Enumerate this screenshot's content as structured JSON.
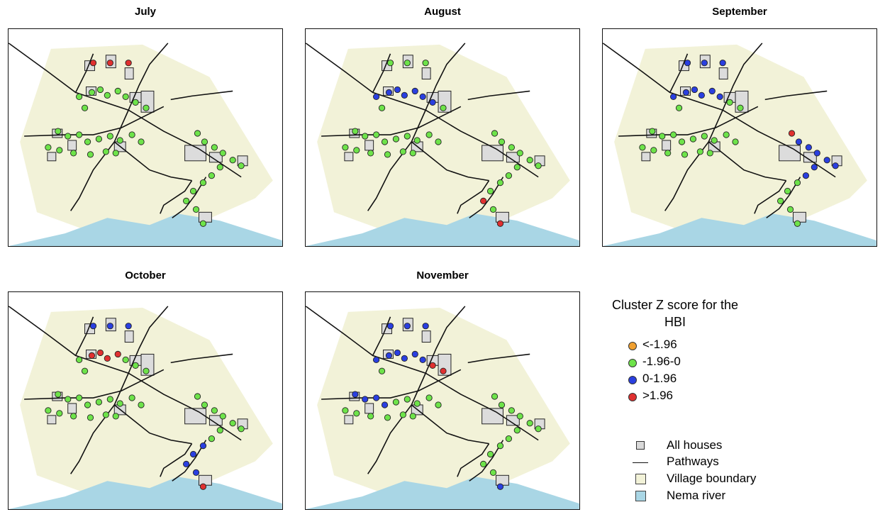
{
  "panels": [
    {
      "title": "July"
    },
    {
      "title": "August"
    },
    {
      "title": "September"
    },
    {
      "title": "October"
    },
    {
      "title": "November"
    }
  ],
  "legend": {
    "title": "Cluster Z score for the HBI",
    "categories": [
      {
        "label": "<-1.96",
        "color": "#f0a030"
      },
      {
        "label": "-1.96-0",
        "color": "#6ee34a"
      },
      {
        "label": "0-1.96",
        "color": "#2a3fe0"
      },
      {
        "label": ">1.96",
        "color": "#e03030"
      }
    ],
    "layers": [
      {
        "label": "All houses"
      },
      {
        "label": "Pathways"
      },
      {
        "label": "Village boundary",
        "color": "#f2f2d8"
      },
      {
        "label": "Nema river",
        "color": "#a9d6e5"
      }
    ]
  }
}
